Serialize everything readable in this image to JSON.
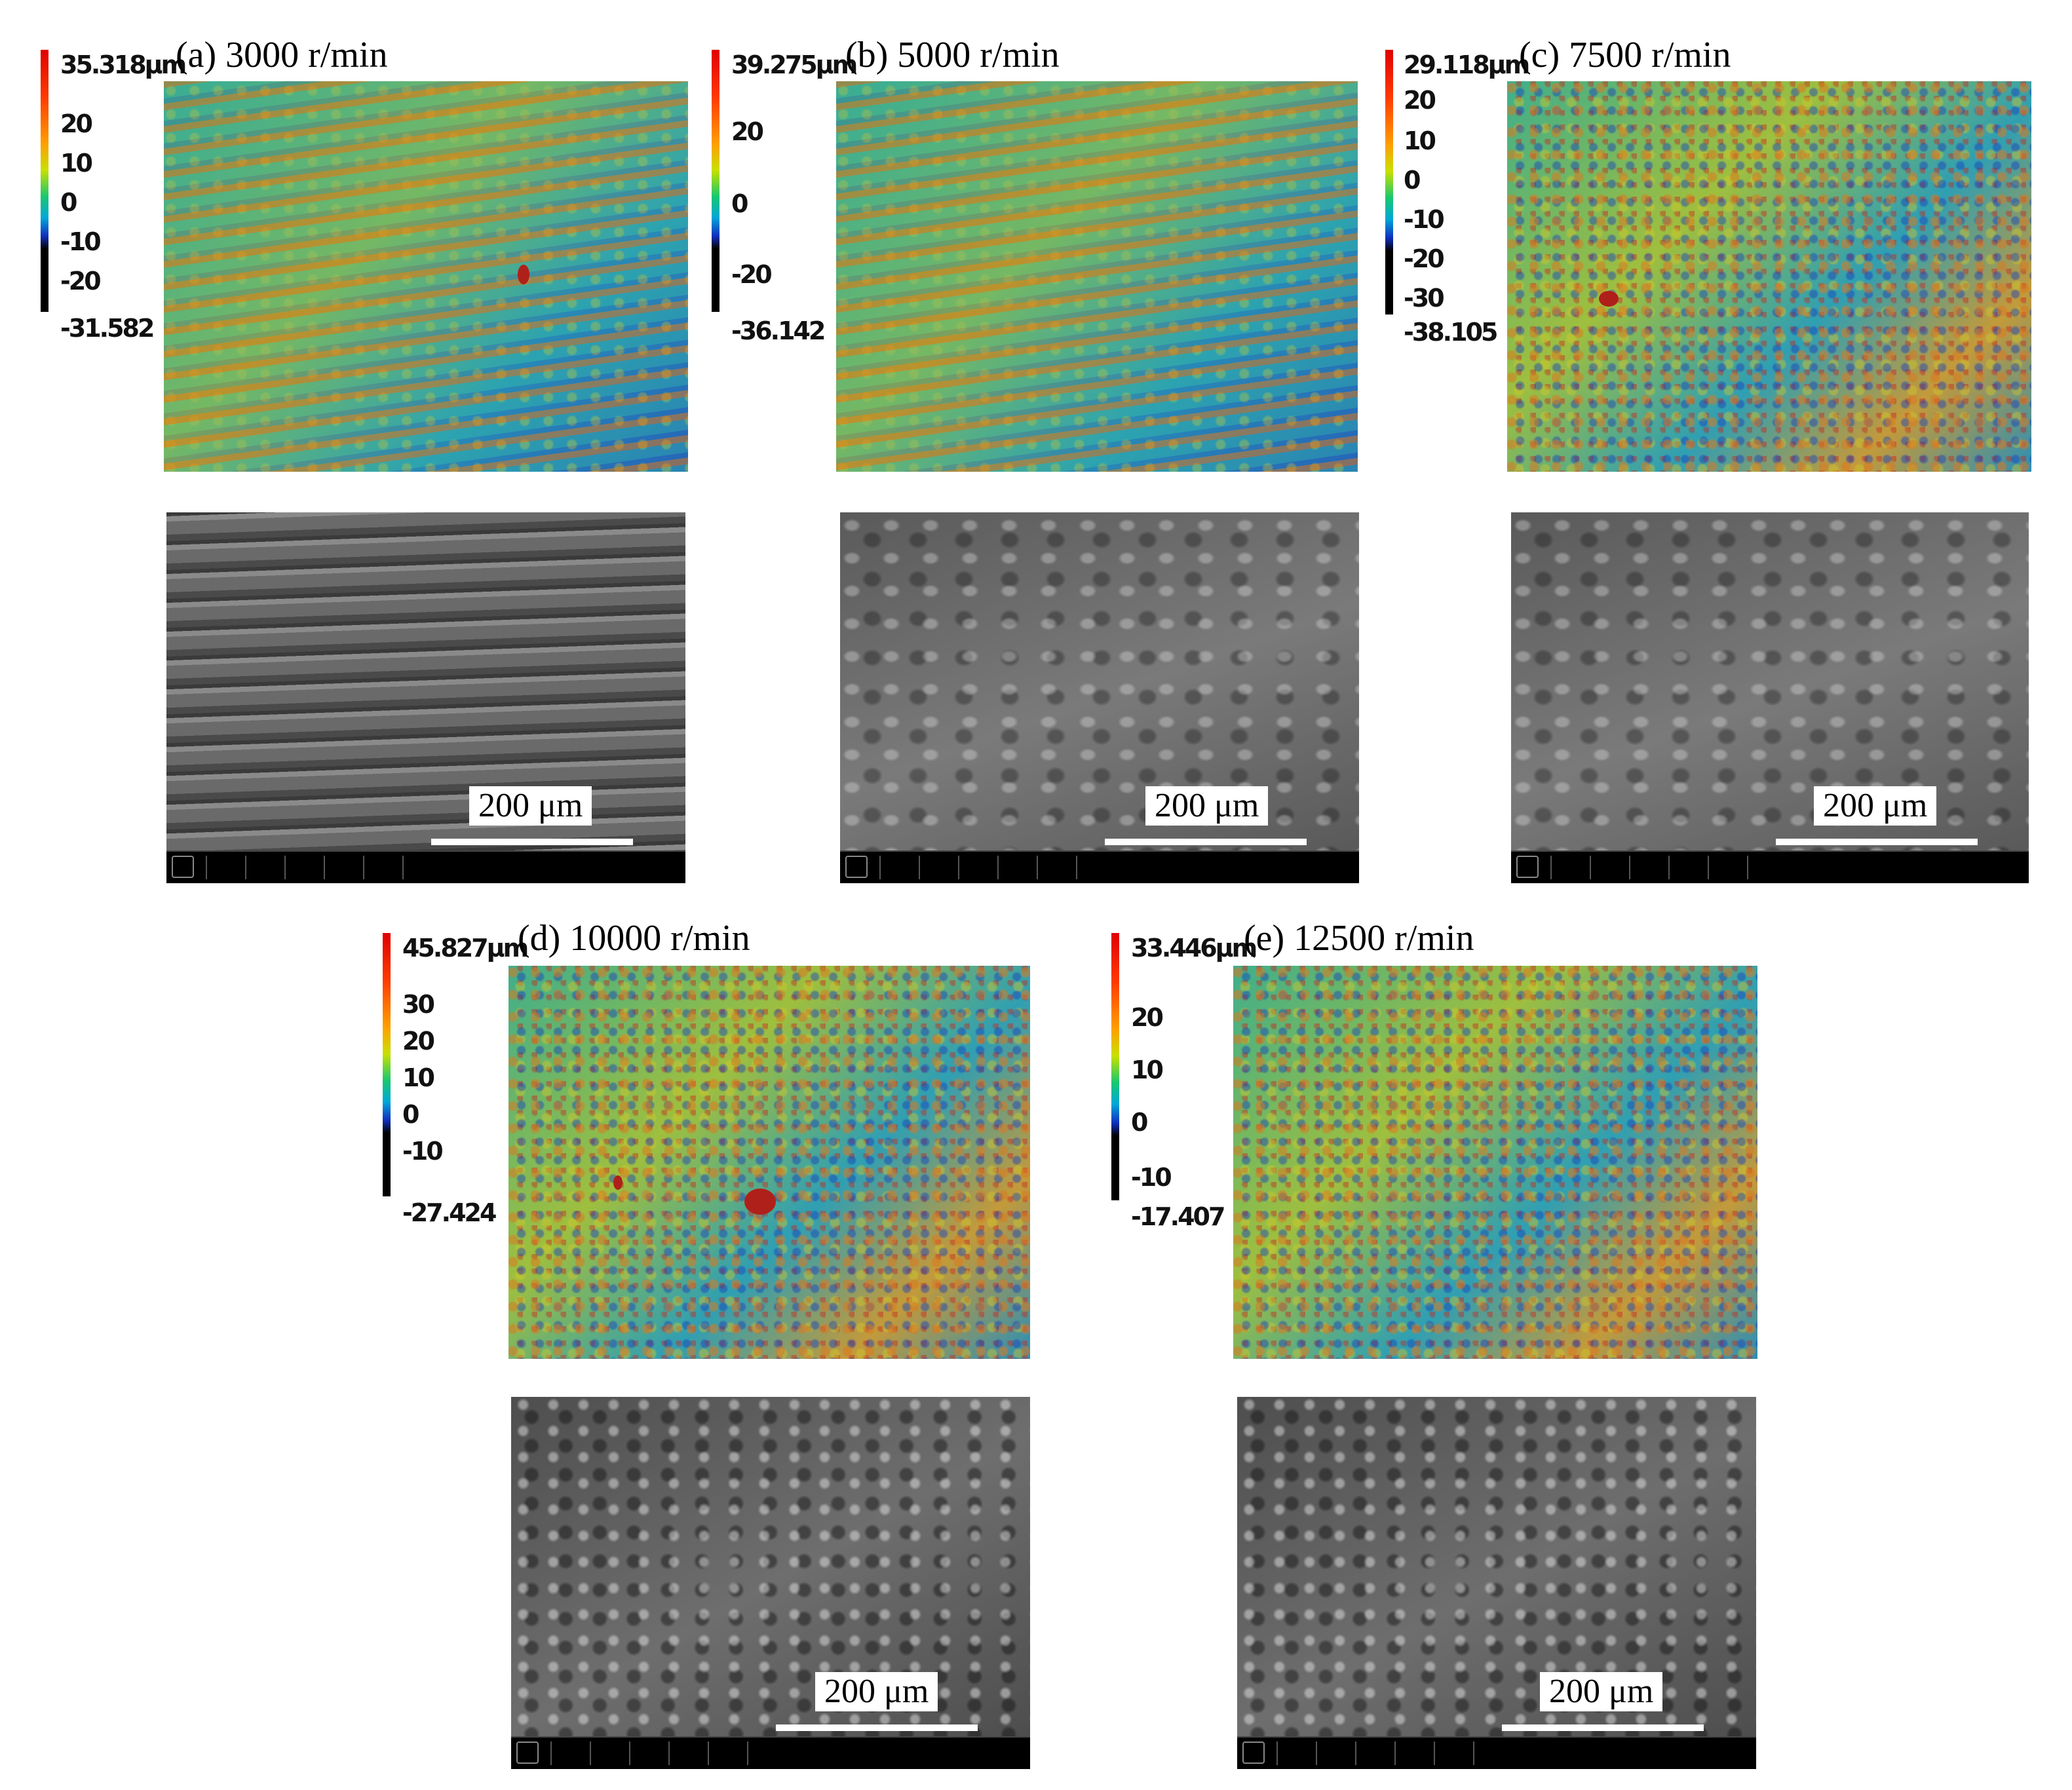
{
  "panels": [
    {
      "title": "(a) 3000 r/min",
      "colorbar": {
        "max": "35.318μm",
        "ticks": [
          "20",
          "10",
          "0",
          "-10",
          "-20"
        ],
        "min": "-31.582"
      },
      "scale_label": "200 μm"
    },
    {
      "title": "(b) 5000 r/min",
      "colorbar": {
        "max": "39.275μm",
        "ticks": [
          "20",
          "0",
          "-20"
        ],
        "min": "-36.142"
      },
      "scale_label": "200 μm"
    },
    {
      "title": "(c) 7500 r/min",
      "colorbar": {
        "max": "29.118μm",
        "ticks": [
          "20",
          "10",
          "0",
          "-10",
          "-20",
          "-30"
        ],
        "min": "-38.105"
      },
      "scale_label": "200 μm"
    },
    {
      "title": "(d) 10000 r/min",
      "colorbar": {
        "max": "45.827μm",
        "ticks": [
          "30",
          "20",
          "10",
          "0",
          "-10"
        ],
        "min": "-27.424"
      },
      "scale_label": "200 μm"
    },
    {
      "title": "(e) 12500 r/min",
      "colorbar": {
        "max": "33.446μm",
        "ticks": [
          "20",
          "10",
          "0",
          "-10"
        ],
        "min": "-17.407"
      },
      "scale_label": "200 μm"
    }
  ],
  "colors": {
    "colormap_high": "#e00000",
    "colormap_mid": "#18c870",
    "colormap_low": "#1030c0",
    "colormap_floor": "#000000"
  }
}
